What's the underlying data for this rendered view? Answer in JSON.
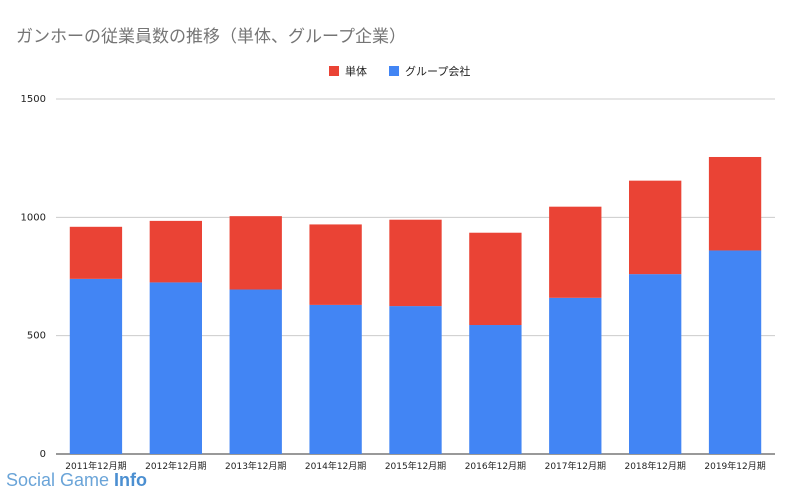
{
  "chart_data": {
    "type": "bar",
    "stacked": true,
    "title": "ガンホーの従業員数の推移（単体、グループ企業）",
    "xlabel": "",
    "ylabel": "",
    "categories": [
      "2011年12月期",
      "2012年12月期",
      "2013年12月期",
      "2014年12月期",
      "2015年12月期",
      "2016年12月期",
      "2017年12月期",
      "2018年12月期",
      "2019年12月期"
    ],
    "series": [
      {
        "name": "グループ会社",
        "color": "#4285f4",
        "values": [
          740,
          725,
          695,
          630,
          625,
          545,
          660,
          760,
          860
        ]
      },
      {
        "name": "単体",
        "color": "#ea4335",
        "values": [
          220,
          260,
          310,
          340,
          365,
          390,
          385,
          395,
          395
        ]
      }
    ],
    "legend_order": [
      "単体",
      "グループ会社"
    ],
    "legend_position": "top-center",
    "yticks": [
      "0",
      "500",
      "1000",
      "1500"
    ],
    "ylim": [
      0,
      1500
    ],
    "grid": true
  },
  "watermark": {
    "part1": "Social Game ",
    "part2": "Info"
  }
}
